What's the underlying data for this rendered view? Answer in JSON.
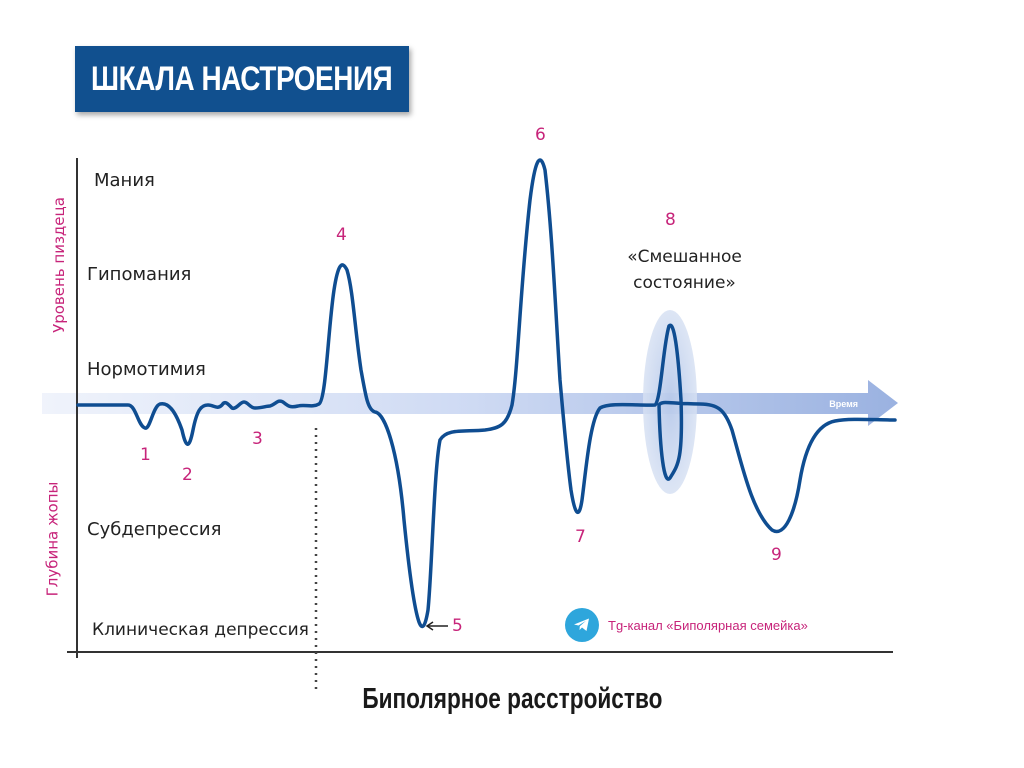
{
  "title": "ШКАЛА НАСТРОЕНИЯ",
  "footer_title": "Биполярное расстройство",
  "axis_labels": {
    "upper": "Уровень пиздеца",
    "lower": "Глубина жопы",
    "time": "Время"
  },
  "levels": {
    "mania": "Мания",
    "hypomania": "Гипомания",
    "normothymia": "Нормотимия",
    "subdepression": "Субдепрессия",
    "clinical_depression": "Клиническая депрессия"
  },
  "markers": [
    "1",
    "2",
    "3",
    "4",
    "5",
    "6",
    "7",
    "8",
    "9"
  ],
  "mixed_state": {
    "line1": "«Смешанное",
    "line2": "состояние»"
  },
  "telegram": {
    "icon": "telegram-icon",
    "text": "Tg-канал «Биполярная семейка»"
  },
  "colors": {
    "title_bg": "#11508f",
    "curve": "#0f4d91",
    "accent": "#c7247a",
    "time_arrow": "#a9bfe6",
    "telegram": "#2ea6dc"
  }
}
